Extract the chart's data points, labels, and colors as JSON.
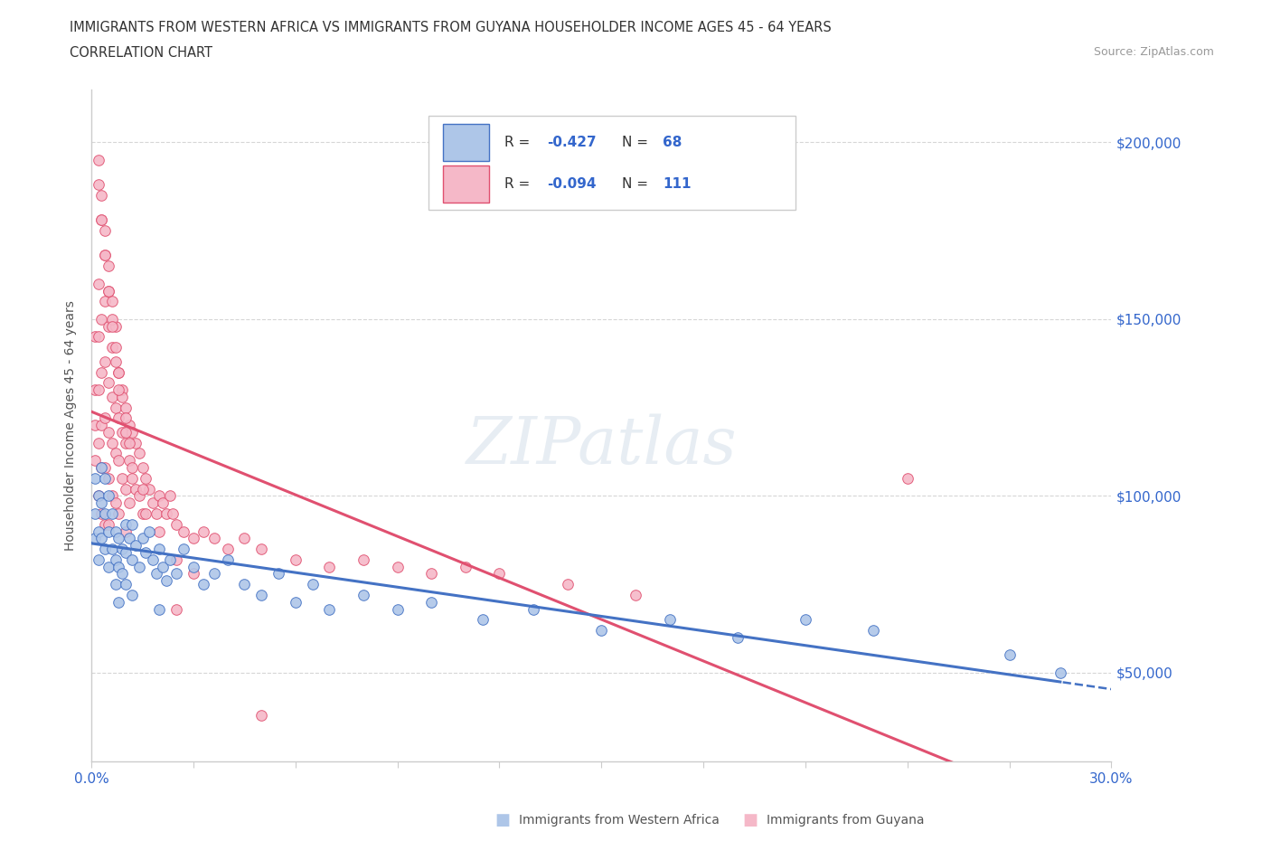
{
  "title_line1": "IMMIGRANTS FROM WESTERN AFRICA VS IMMIGRANTS FROM GUYANA HOUSEHOLDER INCOME AGES 45 - 64 YEARS",
  "title_line2": "CORRELATION CHART",
  "source_text": "Source: ZipAtlas.com",
  "ylabel": "Householder Income Ages 45 - 64 years",
  "xlim": [
    0.0,
    0.3
  ],
  "ylim": [
    25000,
    215000
  ],
  "yticks": [
    50000,
    100000,
    150000,
    200000
  ],
  "ytick_labels": [
    "$50,000",
    "$100,000",
    "$150,000",
    "$200,000"
  ],
  "xticks": [
    0.0,
    0.03,
    0.06,
    0.09,
    0.12,
    0.15,
    0.18,
    0.21,
    0.24,
    0.27,
    0.3
  ],
  "color_western_africa_fill": "#aec6e8",
  "color_western_africa_edge": "#4472c4",
  "color_guyana_fill": "#f5b8c8",
  "color_guyana_edge": "#e05070",
  "trendline_blue": "#4472c4",
  "trendline_pink": "#e05070",
  "watermark_text": "ZIPatlas",
  "wa_x": [
    0.001,
    0.001,
    0.001,
    0.002,
    0.002,
    0.002,
    0.003,
    0.003,
    0.003,
    0.004,
    0.004,
    0.004,
    0.005,
    0.005,
    0.005,
    0.006,
    0.006,
    0.007,
    0.007,
    0.007,
    0.008,
    0.008,
    0.009,
    0.009,
    0.01,
    0.01,
    0.011,
    0.012,
    0.012,
    0.013,
    0.014,
    0.015,
    0.016,
    0.017,
    0.018,
    0.019,
    0.02,
    0.021,
    0.022,
    0.023,
    0.025,
    0.027,
    0.03,
    0.033,
    0.036,
    0.04,
    0.045,
    0.05,
    0.055,
    0.06,
    0.065,
    0.07,
    0.08,
    0.09,
    0.1,
    0.115,
    0.13,
    0.15,
    0.17,
    0.19,
    0.21,
    0.23,
    0.27,
    0.285,
    0.01,
    0.008,
    0.012,
    0.02
  ],
  "wa_y": [
    105000,
    95000,
    88000,
    100000,
    90000,
    82000,
    108000,
    98000,
    88000,
    105000,
    95000,
    85000,
    100000,
    90000,
    80000,
    95000,
    85000,
    90000,
    82000,
    75000,
    88000,
    80000,
    85000,
    78000,
    92000,
    84000,
    88000,
    82000,
    92000,
    86000,
    80000,
    88000,
    84000,
    90000,
    82000,
    78000,
    85000,
    80000,
    76000,
    82000,
    78000,
    85000,
    80000,
    75000,
    78000,
    82000,
    75000,
    72000,
    78000,
    70000,
    75000,
    68000,
    72000,
    68000,
    70000,
    65000,
    68000,
    62000,
    65000,
    60000,
    65000,
    62000,
    55000,
    50000,
    75000,
    70000,
    72000,
    68000
  ],
  "gy_x": [
    0.001,
    0.001,
    0.001,
    0.001,
    0.002,
    0.002,
    0.002,
    0.002,
    0.002,
    0.003,
    0.003,
    0.003,
    0.003,
    0.003,
    0.004,
    0.004,
    0.004,
    0.004,
    0.004,
    0.005,
    0.005,
    0.005,
    0.005,
    0.005,
    0.006,
    0.006,
    0.006,
    0.006,
    0.007,
    0.007,
    0.007,
    0.007,
    0.008,
    0.008,
    0.008,
    0.008,
    0.009,
    0.009,
    0.009,
    0.01,
    0.01,
    0.01,
    0.01,
    0.011,
    0.011,
    0.011,
    0.012,
    0.012,
    0.013,
    0.013,
    0.014,
    0.014,
    0.015,
    0.015,
    0.016,
    0.016,
    0.017,
    0.018,
    0.019,
    0.02,
    0.021,
    0.022,
    0.023,
    0.024,
    0.025,
    0.027,
    0.03,
    0.033,
    0.036,
    0.04,
    0.045,
    0.05,
    0.06,
    0.07,
    0.08,
    0.09,
    0.1,
    0.11,
    0.12,
    0.14,
    0.16,
    0.002,
    0.003,
    0.004,
    0.005,
    0.006,
    0.007,
    0.003,
    0.004,
    0.005,
    0.006,
    0.007,
    0.008,
    0.009,
    0.01,
    0.011,
    0.012,
    0.002,
    0.003,
    0.004,
    0.005,
    0.006,
    0.008,
    0.01,
    0.015,
    0.02,
    0.025,
    0.03,
    0.24,
    0.025,
    0.05
  ],
  "gy_y": [
    145000,
    130000,
    120000,
    110000,
    160000,
    145000,
    130000,
    115000,
    100000,
    150000,
    135000,
    120000,
    108000,
    95000,
    155000,
    138000,
    122000,
    108000,
    92000,
    148000,
    132000,
    118000,
    105000,
    92000,
    142000,
    128000,
    115000,
    100000,
    138000,
    125000,
    112000,
    98000,
    135000,
    122000,
    110000,
    95000,
    130000,
    118000,
    105000,
    125000,
    115000,
    102000,
    90000,
    120000,
    110000,
    98000,
    118000,
    105000,
    115000,
    102000,
    112000,
    100000,
    108000,
    95000,
    105000,
    95000,
    102000,
    98000,
    95000,
    100000,
    98000,
    95000,
    100000,
    95000,
    92000,
    90000,
    88000,
    90000,
    88000,
    85000,
    88000,
    85000,
    82000,
    80000,
    82000,
    80000,
    78000,
    80000,
    78000,
    75000,
    72000,
    195000,
    185000,
    175000,
    165000,
    155000,
    148000,
    178000,
    168000,
    158000,
    150000,
    142000,
    135000,
    128000,
    122000,
    115000,
    108000,
    188000,
    178000,
    168000,
    158000,
    148000,
    130000,
    118000,
    102000,
    90000,
    82000,
    78000,
    105000,
    68000,
    38000
  ]
}
